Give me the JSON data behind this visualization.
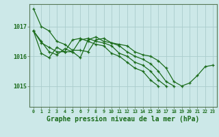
{
  "background_color": "#cce8e8",
  "grid_color": "#aacccc",
  "line_color": "#1a6b1a",
  "xlabel": "Graphe pression niveau de la mer (hPa)",
  "yticks": [
    1015,
    1016,
    1017
  ],
  "xticks": [
    0,
    1,
    2,
    3,
    4,
    5,
    6,
    7,
    8,
    9,
    10,
    11,
    12,
    13,
    14,
    15,
    16,
    17,
    18,
    19,
    20,
    21,
    22,
    23
  ],
  "xlim": [
    -0.5,
    23.5
  ],
  "ylim": [
    1014.3,
    1017.75
  ],
  "series": [
    [
      1017.6,
      1017.0,
      1016.85,
      1016.5,
      1016.4,
      1016.2,
      1016.2,
      1016.15,
      1016.55,
      1016.6,
      1016.45,
      1016.4,
      1016.35,
      1016.15,
      1016.05,
      1016.0,
      1015.85,
      1015.6,
      1015.15,
      1015.0,
      1015.1,
      1015.35,
      1015.65,
      1015.7
    ],
    [
      1016.85,
      1016.5,
      1016.15,
      1016.05,
      1016.25,
      1016.15,
      1015.95,
      1016.55,
      1016.65,
      1016.5,
      1016.45,
      1016.35,
      1016.15,
      1016.0,
      1015.9,
      1015.75,
      1015.5,
      1015.15,
      1015.0,
      null,
      null,
      null,
      null,
      null
    ],
    [
      1016.85,
      1016.1,
      1015.95,
      1016.3,
      1016.15,
      1016.15,
      1016.55,
      1016.6,
      1016.5,
      1016.45,
      1016.35,
      1016.1,
      1016.0,
      1015.8,
      1015.7,
      1015.5,
      1015.2,
      1015.0,
      null,
      null,
      null,
      null,
      null,
      null
    ],
    [
      1016.85,
      1016.45,
      1016.3,
      1016.15,
      1016.15,
      1016.55,
      1016.6,
      1016.5,
      1016.4,
      1016.35,
      1016.1,
      1016.0,
      1015.8,
      1015.6,
      1015.5,
      1015.2,
      1015.0,
      null,
      null,
      null,
      null,
      null,
      null,
      null
    ]
  ]
}
